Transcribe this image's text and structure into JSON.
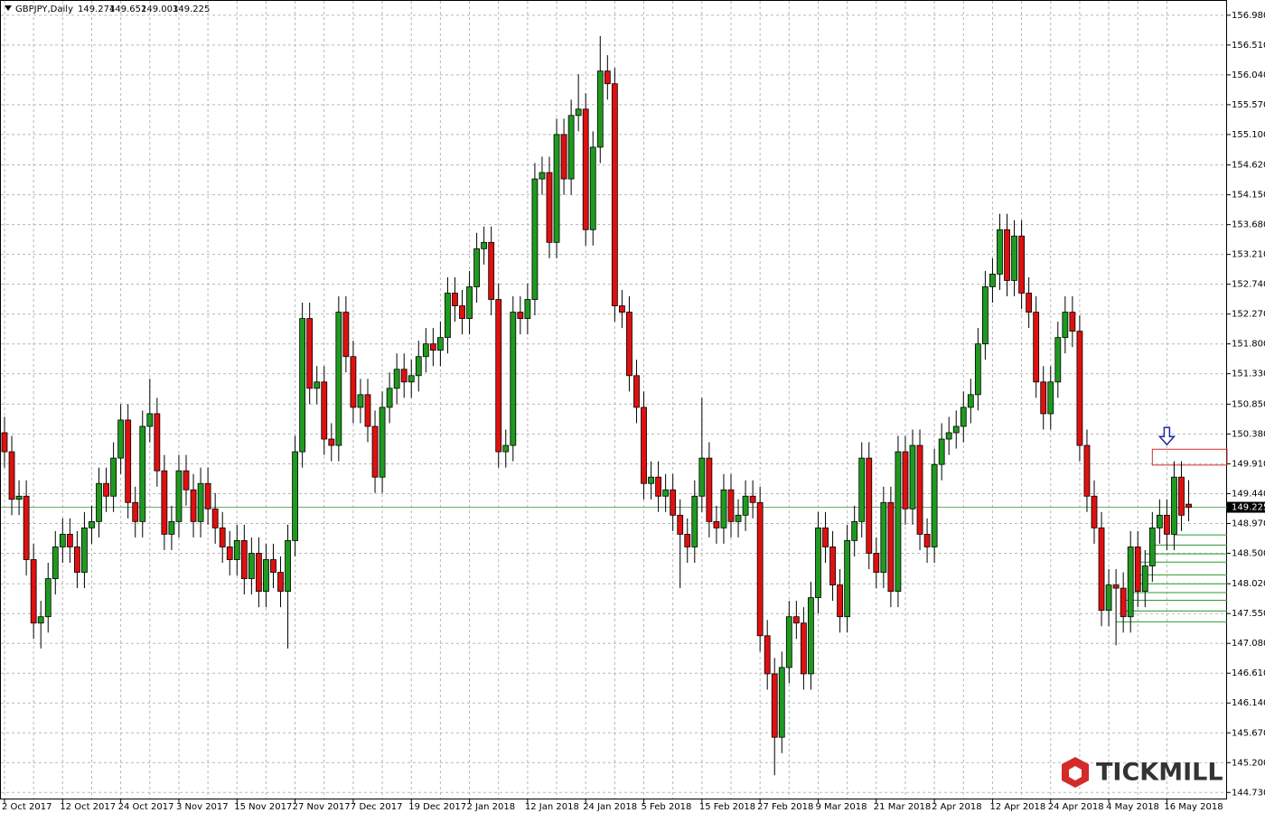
{
  "chart_data": {
    "type": "candlestick",
    "title": "GBPJPY,Daily",
    "logo": "TICKMILL",
    "ylim": [
      144.62,
      157.22
    ],
    "yticks": [
      {
        "value": 156.98,
        "label": "156.980"
      },
      {
        "value": 156.51,
        "label": "156.510"
      },
      {
        "value": 156.04,
        "label": "156.040"
      },
      {
        "value": 155.57,
        "label": "155.570"
      },
      {
        "value": 155.1,
        "label": "155.100"
      },
      {
        "value": 154.62,
        "label": "154.620"
      },
      {
        "value": 154.15,
        "label": "154.150"
      },
      {
        "value": 153.68,
        "label": "153.680"
      },
      {
        "value": 153.21,
        "label": "153.210"
      },
      {
        "value": 152.74,
        "label": "152.740"
      },
      {
        "value": 152.27,
        "label": "152.270"
      },
      {
        "value": 151.8,
        "label": "151.800"
      },
      {
        "value": 151.33,
        "label": "151.330"
      },
      {
        "value": 150.85,
        "label": "150.850"
      },
      {
        "value": 150.38,
        "label": "150.380"
      },
      {
        "value": 149.91,
        "label": "149.910"
      },
      {
        "value": 149.44,
        "label": "149.440"
      },
      {
        "value": 148.97,
        "label": "148.970"
      },
      {
        "value": 148.5,
        "label": "148.500"
      },
      {
        "value": 148.02,
        "label": "148.020"
      },
      {
        "value": 147.55,
        "label": "147.550"
      },
      {
        "value": 147.08,
        "label": "147.080"
      },
      {
        "value": 146.61,
        "label": "146.610"
      },
      {
        "value": 146.14,
        "label": "146.140"
      },
      {
        "value": 145.67,
        "label": "145.670"
      },
      {
        "value": 145.2,
        "label": "145.200"
      },
      {
        "value": 144.73,
        "label": "144.730"
      }
    ],
    "grid": true,
    "up_color": "#1f9a1f",
    "down_color": "#e01010",
    "categories": [
      "2 Oct 2017",
      null,
      null,
      null,
      null,
      null,
      null,
      null,
      "12 Oct 2017",
      null,
      null,
      null,
      null,
      null,
      null,
      null,
      "24 Oct 2017",
      null,
      null,
      null,
      null,
      null,
      null,
      null,
      "3 Nov 2017",
      null,
      null,
      null,
      null,
      null,
      null,
      null,
      "15 Nov 2017",
      null,
      null,
      null,
      null,
      null,
      null,
      null,
      "27 Nov 2017",
      null,
      null,
      null,
      null,
      null,
      null,
      null,
      "7 Dec 2017",
      null,
      null,
      null,
      null,
      null,
      null,
      null,
      "19 Dec 2017",
      null,
      null,
      null,
      null,
      null,
      null,
      null,
      "2 Jan 2018",
      null,
      null,
      null,
      null,
      null,
      null,
      null,
      "12 Jan 2018",
      null,
      null,
      null,
      null,
      null,
      null,
      null,
      "24 Jan 2018",
      null,
      null,
      null,
      null,
      null,
      null,
      null,
      "5 Feb 2018",
      null,
      null,
      null,
      null,
      null,
      null,
      null,
      "15 Feb 2018",
      null,
      null,
      null,
      null,
      null,
      null,
      null,
      "27 Feb 2018",
      null,
      null,
      null,
      null,
      null,
      null,
      null,
      "9 Mar 2018",
      null,
      null,
      null,
      null,
      null,
      null,
      null,
      "21 Mar 2018",
      null,
      null,
      null,
      null,
      null,
      null,
      null,
      "2 Apr 2018",
      null,
      null,
      null,
      null,
      null,
      null,
      null,
      "12 Apr 2018",
      null,
      null,
      null,
      null,
      null,
      null,
      null,
      "24 Apr 2018",
      null,
      null,
      null,
      null,
      null,
      null,
      null,
      "4 May 2018",
      null,
      null,
      null,
      null,
      null,
      null,
      null,
      "16 May 2018",
      null,
      null,
      null
    ],
    "open": [
      150.4,
      150.1,
      149.35,
      149.4,
      148.4,
      147.4,
      147.5,
      148.1,
      148.6,
      148.8,
      148.6,
      148.2,
      148.9,
      149.0,
      149.6,
      149.4,
      150.0,
      150.6,
      149.3,
      149.0,
      150.5,
      150.7,
      149.8,
      148.8,
      149.0,
      149.8,
      149.5,
      149.0,
      149.6,
      149.2,
      148.9,
      148.6,
      148.4,
      148.7,
      148.1,
      148.5,
      147.9,
      148.4,
      148.2,
      147.9,
      148.7,
      150.1,
      152.2,
      151.1,
      151.2,
      150.3,
      150.2,
      152.3,
      151.6,
      150.8,
      151.0,
      150.5,
      149.7,
      150.8,
      151.1,
      151.4,
      151.2,
      151.3,
      151.6,
      151.8,
      151.7,
      151.9,
      152.6,
      152.4,
      152.2,
      152.7,
      153.3,
      153.4,
      152.5,
      150.1,
      150.2,
      152.3,
      152.2,
      152.5,
      154.4,
      154.5,
      153.4,
      155.1,
      154.4,
      155.4,
      155.5,
      153.6,
      154.9,
      156.1,
      155.9,
      152.4,
      152.3,
      151.3,
      150.8,
      149.6,
      149.7,
      149.4,
      149.5,
      149.1,
      148.8,
      148.6,
      149.4,
      150.0,
      149.0,
      148.9,
      149.5,
      149.0,
      149.1,
      149.4,
      149.3,
      147.2,
      146.6,
      145.6,
      146.7,
      147.5,
      147.4,
      146.6,
      147.8,
      148.9,
      148.6,
      148.0,
      147.5,
      148.7,
      149.0,
      150.0,
      148.5,
      148.2,
      149.3,
      147.9,
      150.1,
      149.2,
      150.2,
      148.8,
      148.6,
      149.9,
      150.3,
      150.4,
      150.5,
      150.8,
      151.0,
      151.8,
      152.7,
      152.9,
      153.6,
      152.8,
      153.5,
      152.6,
      152.3,
      151.2,
      150.7,
      151.2,
      151.9,
      152.3,
      152.0,
      150.2,
      149.4,
      148.9,
      147.6,
      148.0,
      147.95,
      147.5,
      148.6,
      147.9,
      148.3,
      148.9,
      149.1,
      148.8,
      149.7,
      149.274
    ],
    "high": [
      150.65,
      150.35,
      149.65,
      149.65,
      148.65,
      147.75,
      148.35,
      148.85,
      149.05,
      149.05,
      148.85,
      149.15,
      149.25,
      149.85,
      149.85,
      150.25,
      150.85,
      150.85,
      149.55,
      150.75,
      151.25,
      150.95,
      150.05,
      149.25,
      150.05,
      150.05,
      149.75,
      149.85,
      149.85,
      149.45,
      149.15,
      148.85,
      148.95,
      148.95,
      148.75,
      148.75,
      148.65,
      148.65,
      148.45,
      148.95,
      150.35,
      152.45,
      152.45,
      151.45,
      151.45,
      150.55,
      152.55,
      152.55,
      151.85,
      151.25,
      151.25,
      150.75,
      151.05,
      151.35,
      151.65,
      151.65,
      151.55,
      151.85,
      152.05,
      152.05,
      152.15,
      152.85,
      152.85,
      152.65,
      152.95,
      153.55,
      153.65,
      153.65,
      152.75,
      150.45,
      152.55,
      152.55,
      152.75,
      154.65,
      154.75,
      154.75,
      155.35,
      155.35,
      155.65,
      156.05,
      155.75,
      155.15,
      156.65,
      156.35,
      156.15,
      152.65,
      152.55,
      151.55,
      151.05,
      149.95,
      149.95,
      149.75,
      149.75,
      149.35,
      149.05,
      149.65,
      150.95,
      150.25,
      149.25,
      149.75,
      149.75,
      149.35,
      149.65,
      149.65,
      149.55,
      147.45,
      146.85,
      146.95,
      147.75,
      147.75,
      147.65,
      148.05,
      149.15,
      149.15,
      148.85,
      148.25,
      148.95,
      149.25,
      150.25,
      150.25,
      148.75,
      149.55,
      149.55,
      150.35,
      150.35,
      150.45,
      150.45,
      149.05,
      150.15,
      150.55,
      150.65,
      150.75,
      151.05,
      151.25,
      152.05,
      152.95,
      153.15,
      153.85,
      153.85,
      153.75,
      153.75,
      152.85,
      152.55,
      151.45,
      151.45,
      152.15,
      152.55,
      152.55,
      152.25,
      150.45,
      149.65,
      149.15,
      148.25,
      148.25,
      148.2,
      148.85,
      148.85,
      148.55,
      149.15,
      149.35,
      149.35,
      149.95,
      149.95,
      149.652
    ],
    "low": [
      149.85,
      149.1,
      149.1,
      148.15,
      147.15,
      147.0,
      147.25,
      147.85,
      148.35,
      148.35,
      147.95,
      147.95,
      148.65,
      148.75,
      149.15,
      149.15,
      149.75,
      149.05,
      148.75,
      148.75,
      150.25,
      149.55,
      148.55,
      148.55,
      148.75,
      149.25,
      148.75,
      148.75,
      148.95,
      148.65,
      148.35,
      148.15,
      148.15,
      147.85,
      147.85,
      147.65,
      147.65,
      147.95,
      147.65,
      147.0,
      148.45,
      149.85,
      150.85,
      150.85,
      150.05,
      149.95,
      149.95,
      151.35,
      150.55,
      150.55,
      150.25,
      149.45,
      149.45,
      150.55,
      150.85,
      150.95,
      150.95,
      151.05,
      151.35,
      151.45,
      151.45,
      151.65,
      152.15,
      151.95,
      151.95,
      152.45,
      153.05,
      152.25,
      149.85,
      149.85,
      149.95,
      151.95,
      151.95,
      152.25,
      154.15,
      153.15,
      153.15,
      154.15,
      154.15,
      155.15,
      153.35,
      153.35,
      154.65,
      155.65,
      152.15,
      152.05,
      151.05,
      150.55,
      149.35,
      149.35,
      149.15,
      149.15,
      148.85,
      147.95,
      148.35,
      148.35,
      149.15,
      148.75,
      148.65,
      148.65,
      148.75,
      148.75,
      148.85,
      149.05,
      146.95,
      146.35,
      145.0,
      145.35,
      146.45,
      147.15,
      146.35,
      146.35,
      147.55,
      148.35,
      147.75,
      147.25,
      147.25,
      148.45,
      148.75,
      148.25,
      147.95,
      147.95,
      147.65,
      147.65,
      148.95,
      148.95,
      148.55,
      148.35,
      148.35,
      149.65,
      150.05,
      150.15,
      150.25,
      150.55,
      150.75,
      151.55,
      152.45,
      152.65,
      152.55,
      152.55,
      152.35,
      152.05,
      150.95,
      150.45,
      150.45,
      150.95,
      151.65,
      151.75,
      149.95,
      149.15,
      148.65,
      147.35,
      147.35,
      147.05,
      147.25,
      147.25,
      147.65,
      147.65,
      148.05,
      148.65,
      148.55,
      148.55,
      148.85,
      149.003
    ],
    "close": [
      150.1,
      149.35,
      149.4,
      148.4,
      147.4,
      147.5,
      148.1,
      148.6,
      148.8,
      148.6,
      148.2,
      148.9,
      149.0,
      149.6,
      149.4,
      150.0,
      150.6,
      149.3,
      149.0,
      150.5,
      150.7,
      149.8,
      148.8,
      149.0,
      149.8,
      149.5,
      149.0,
      149.6,
      149.2,
      148.9,
      148.6,
      148.4,
      148.7,
      148.1,
      148.5,
      147.9,
      148.4,
      148.2,
      147.9,
      148.7,
      150.1,
      152.2,
      151.1,
      151.2,
      150.3,
      150.2,
      152.3,
      151.6,
      150.8,
      151.0,
      150.5,
      149.7,
      150.8,
      151.1,
      151.4,
      151.2,
      151.3,
      151.6,
      151.8,
      151.7,
      151.9,
      152.6,
      152.4,
      152.2,
      152.7,
      153.3,
      153.4,
      152.5,
      150.1,
      150.2,
      152.3,
      152.2,
      152.5,
      154.4,
      154.5,
      153.4,
      155.1,
      154.4,
      155.4,
      155.5,
      153.6,
      154.9,
      156.1,
      155.9,
      152.4,
      152.3,
      151.3,
      150.8,
      149.6,
      149.7,
      149.4,
      149.5,
      149.1,
      148.8,
      148.6,
      149.4,
      150.0,
      149.0,
      148.9,
      149.5,
      149.0,
      149.1,
      149.4,
      149.3,
      147.2,
      146.6,
      145.6,
      146.7,
      147.5,
      147.4,
      146.6,
      147.8,
      148.9,
      148.6,
      148.0,
      147.5,
      148.7,
      149.0,
      150.0,
      148.5,
      148.2,
      149.3,
      147.9,
      150.1,
      149.2,
      150.2,
      148.8,
      148.6,
      149.9,
      150.3,
      150.4,
      150.5,
      150.8,
      151.0,
      151.8,
      152.7,
      152.9,
      153.6,
      152.8,
      153.5,
      152.6,
      152.3,
      151.2,
      150.7,
      151.2,
      151.9,
      152.3,
      152.0,
      150.2,
      149.4,
      148.9,
      147.6,
      148.0,
      147.95,
      147.5,
      148.6,
      147.9,
      148.3,
      148.9,
      149.1,
      148.8,
      149.7,
      149.1,
      149.225
    ],
    "levels": [
      {
        "from": 161,
        "price": 148.79
      },
      {
        "from": 158,
        "price": 148.63
      },
      {
        "from": 157,
        "price": 148.49
      },
      {
        "from": 156,
        "price": 148.36
      },
      {
        "from": 156,
        "price": 148.16
      },
      {
        "from": 156,
        "price": 148.02
      },
      {
        "from": 155,
        "price": 147.88
      },
      {
        "from": 154,
        "price": 147.76
      },
      {
        "from": 154,
        "price": 147.59
      },
      {
        "from": 153,
        "price": 147.42
      }
    ],
    "zone": {
      "from": 158,
      "low": 149.89,
      "high": 150.14
    }
  }
}
